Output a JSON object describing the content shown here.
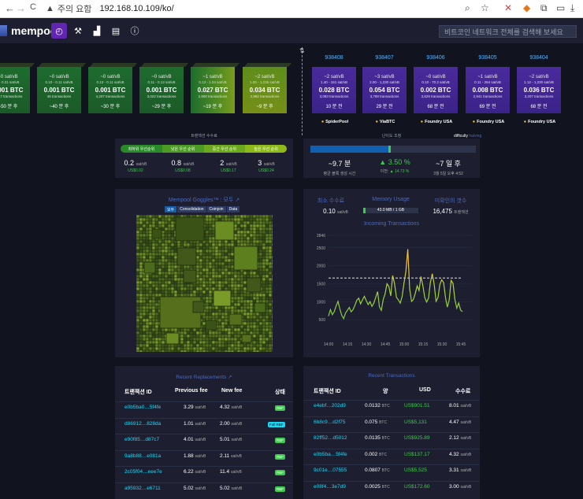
{
  "browser": {
    "back": "←",
    "forward": "→",
    "reload": "C",
    "security_icon": "▲",
    "security_label": "주의 요함",
    "url": "192.168.10.109/ko/",
    "icons": [
      "zoom-icon",
      "star-icon",
      "extension-icon",
      "metamask-icon",
      "puzzle-icon",
      "profile-icon",
      "download-icon"
    ]
  },
  "app": {
    "brand": "mempool",
    "search_placeholder": "비트코인 네트워크 전체를 검색해 보세요",
    "nav_icons": [
      "dashboard-icon",
      "mining-icon",
      "graphs-icon",
      "docs-icon",
      "about-icon"
    ]
  },
  "mempool_blocks": [
    {
      "fee": "~0 sat/vB",
      "range": "0 - 0.21 sat/vB",
      "total": "0.001 BTC",
      "count": "3,147 transactions",
      "eta": "~50 분 후"
    },
    {
      "fee": "~0 sat/vB",
      "range": "0.10 - 0.11 sat/vB",
      "total": "0.001 BTC",
      "count": "46 transactions",
      "eta": "~40 분 후"
    },
    {
      "fee": "~0 sat/vB",
      "range": "0.10 - 0.11 sat/vB",
      "total": "0.001 BTC",
      "count": "4,207 transactions",
      "eta": "~30 분 후"
    },
    {
      "fee": "~0 sat/vB",
      "range": "0.11 - 0.13 sat/vB",
      "total": "0.001 BTC",
      "count": "3,022 transactions",
      "eta": "~29 분 후"
    },
    {
      "fee": "~1 sat/vB",
      "range": "0.13 - 1.04 sat/vB",
      "total": "0.027 BTC",
      "count": "2,800 transactions",
      "eta": "~19 분 후"
    },
    {
      "fee": "~2 sat/vB",
      "range": "1.00 - 1,235 sat/vB",
      "total": "0.034 BTC",
      "count": "2,982 transactions",
      "eta": "~9 분 후"
    }
  ],
  "confirmed_blocks": [
    {
      "height": "938408",
      "fee": "~2 sat/vB",
      "range": "1.40 - 151 sat/vB",
      "total": "0.028 BTC",
      "count": "3,083 transactions",
      "eta": "10 분 전",
      "pool": "SpiderPool"
    },
    {
      "height": "938407",
      "fee": "~3 sat/vB",
      "range": "2.00 - 1,230 sat/vB",
      "total": "0.054 BTC",
      "count": "3,788 transactions",
      "eta": "29 분 전",
      "pool": "ViaBTC"
    },
    {
      "height": "938406",
      "fee": "~0 sat/vB",
      "range": "0.10 - 70.2 sat/vB",
      "total": "0.002 BTC",
      "count": "3,629 transactions",
      "eta": "68 분 전",
      "pool": "Foundry USA"
    },
    {
      "height": "938405",
      "fee": "~1 sat/vB",
      "range": "0.11 - 264 sat/vB",
      "total": "0.008 BTC",
      "count": "2,841 transactions",
      "eta": "69 분 전",
      "pool": "Foundry USA"
    },
    {
      "height": "938404",
      "fee": "~2 sat/vB",
      "range": "1.12 - 1,230 sat/vB",
      "total": "0.036 BTC",
      "count": "3,207 transactions",
      "eta": "68 분 전",
      "pool": "Foundry USA"
    }
  ],
  "fees": {
    "title": "트랜잭션 수수료",
    "labels": [
      "최하위 우선순위",
      "낮은 우선 순위",
      "중간 우선 순위",
      "높은 우선 순위"
    ],
    "colors": [
      "#2a8a2a",
      "#4c9b25",
      "#6ca91f",
      "#8eb91a"
    ],
    "values": [
      {
        "sat": "0.2",
        "unit": "sat/vB",
        "usd": "US$0.02"
      },
      {
        "sat": "0.8",
        "unit": "sat/vB",
        "usd": "US$0.08"
      },
      {
        "sat": "2",
        "unit": "sat/vB",
        "usd": "US$0.17"
      },
      {
        "sat": "3",
        "unit": "sat/vB",
        "usd": "US$0.24"
      }
    ]
  },
  "difficulty": {
    "title": "난이도 조정",
    "link": "difficulty",
    "link2": "halving",
    "progress": 0.47,
    "cols": [
      {
        "value": "~9.7 분",
        "sub": "평균 블록 생성 시간"
      },
      {
        "value": "▲ 3.50 %",
        "sub_prefix": "이전: ",
        "sub_green": "▲ 14.73 %"
      },
      {
        "value": "~7 일 후",
        "sub": "3월 5일 오후 4:52"
      }
    ]
  },
  "goggles": {
    "title": "Mempool Goggles™ : 모두",
    "tabs": [
      "모두",
      "Consolidation",
      "Coinjoin",
      "Data"
    ]
  },
  "mempool_stats": {
    "min_fee_label": "최소 수수료",
    "min_fee_value": "0.10",
    "min_fee_unit": "sat/vB",
    "memory_label": "Memory Usage",
    "memory_value": "43.0 MB / 1 GB",
    "memory_fraction": 0.043,
    "unconfirmed_label": "미확인의 갯수",
    "unconfirmed_value": "16,475",
    "unconfirmed_unit": "트랜잭션",
    "chart_title": "Incoming Transactions"
  },
  "chart_data": {
    "type": "line",
    "title": "Incoming Transactions",
    "x_ticks": [
      "14:00",
      "14:15",
      "14:30",
      "14:45",
      "15:00",
      "15:15",
      "15:30",
      "15:45"
    ],
    "y_ticks": [
      500,
      1000,
      1500,
      2000,
      2500
    ],
    "y_tick_labels": [
      "500",
      "1000",
      "1500",
      "2000",
      "2500",
      "2846"
    ],
    "ylim": [
      0,
      2846
    ],
    "reference_line": 1660,
    "values": [
      600,
      780,
      640,
      720,
      880,
      1010,
      800,
      620,
      530,
      680,
      760,
      840,
      720,
      780,
      900,
      1040,
      1100,
      940,
      1050,
      1150,
      1030,
      920,
      1000,
      870,
      960,
      1120,
      1280,
      860,
      760,
      1060,
      1220,
      1500,
      1420,
      1160,
      1730,
      1500,
      1120,
      1050,
      960,
      1140,
      1520,
      1840,
      2460,
      1350,
      1010,
      1060,
      1230,
      1440,
      1310,
      1700,
      1450,
      1120,
      990,
      1100,
      1540,
      1780,
      1480,
      1010,
      1110,
      1480,
      1610,
      1530,
      1110,
      850,
      1050,
      1590,
      1510,
      1060,
      820,
      960,
      770,
      720
    ]
  },
  "replacements": {
    "title": "Recent Replacements",
    "headers": [
      "트랜잭션 ID",
      "Previous fee",
      "New fee",
      "상태"
    ],
    "rows": [
      {
        "txid": "e0b5ba0…5f4fe",
        "prev": "3.29",
        "new": "4.32",
        "unit": "sat/vB",
        "status": "RBF"
      },
      {
        "txid": "d86912…828da",
        "prev": "1.01",
        "new": "2.00",
        "unit": "sat/vB",
        "status": "Full RBF"
      },
      {
        "txid": "e90f85…d87c7",
        "prev": "4.01",
        "new": "5.01",
        "unit": "sat/vB",
        "status": "RBF"
      },
      {
        "txid": "9a8b88…e081a",
        "prev": "1.88",
        "new": "2.11",
        "unit": "sat/vB",
        "status": "RBF"
      },
      {
        "txid": "2c05f04…eee7e",
        "prev": "6.22",
        "new": "11.4",
        "unit": "sat/vB",
        "status": "RBF"
      },
      {
        "txid": "a95932…e6711",
        "prev": "5.02",
        "new": "5.02",
        "unit": "sat/vB",
        "status": "RBF"
      }
    ]
  },
  "transactions": {
    "title": "Recent Transactions",
    "headers": [
      "트랜잭션 ID",
      "양",
      "USD",
      "수수료"
    ],
    "rows": [
      {
        "txid": "e4ebf…202d9",
        "amount": "0.0132",
        "btc": "BTC",
        "usd": "US$901.51",
        "fee": "8.01",
        "unit": "sat/vB"
      },
      {
        "txid": "6b8c9…d2f75",
        "amount": "0.075",
        "btc": "BTC",
        "usd": "US$5,131",
        "fee": "4.47",
        "unit": "sat/vB"
      },
      {
        "txid": "82ff52…d5012",
        "amount": "0.0135",
        "btc": "BTC",
        "usd": "US$925.89",
        "fee": "2.12",
        "unit": "sat/vB"
      },
      {
        "txid": "e0b5ba…5f4fe",
        "amount": "0.002",
        "btc": "BTC",
        "usd": "US$137.17",
        "fee": "4.32",
        "unit": "sat/vB"
      },
      {
        "txid": "9c01e…07555",
        "amount": "0.0807",
        "btc": "BTC",
        "usd": "US$5,525",
        "fee": "3.31",
        "unit": "sat/vB"
      },
      {
        "txid": "e08f4…3e7d9",
        "amount": "0.0025",
        "btc": "BTC",
        "usd": "US$172.60",
        "fee": "3.00",
        "unit": "sat/vB"
      }
    ]
  }
}
